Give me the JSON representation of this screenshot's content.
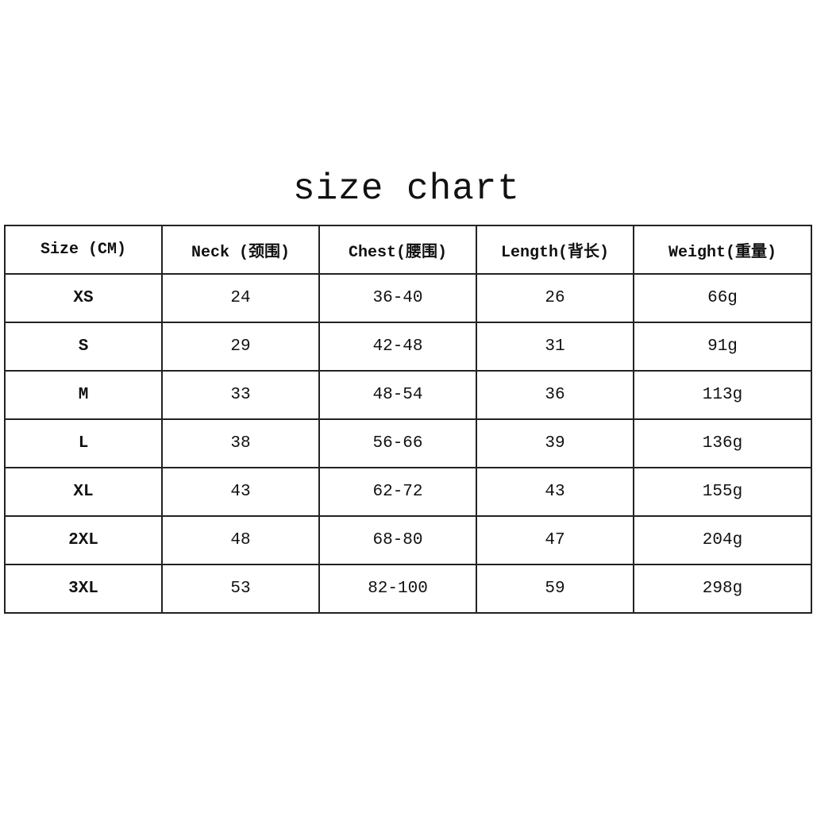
{
  "title": "size chart",
  "headers": [
    "Size (CM)",
    "Neck (颈围)",
    "Chest(腰围)",
    "Length(背长)",
    "Weight(重量)"
  ],
  "rows": [
    [
      "XS",
      "24",
      "36-40",
      "26",
      "66g"
    ],
    [
      "S",
      "29",
      "42-48",
      "31",
      "91g"
    ],
    [
      "M",
      "33",
      "48-54",
      "36",
      "113g"
    ],
    [
      "L",
      "38",
      "56-66",
      "39",
      "136g"
    ],
    [
      "XL",
      "43",
      "62-72",
      "43",
      "155g"
    ],
    [
      "2XL",
      "48",
      "68-80",
      "47",
      "204g"
    ],
    [
      "3XL",
      "53",
      "82-100",
      "59",
      "298g"
    ]
  ]
}
